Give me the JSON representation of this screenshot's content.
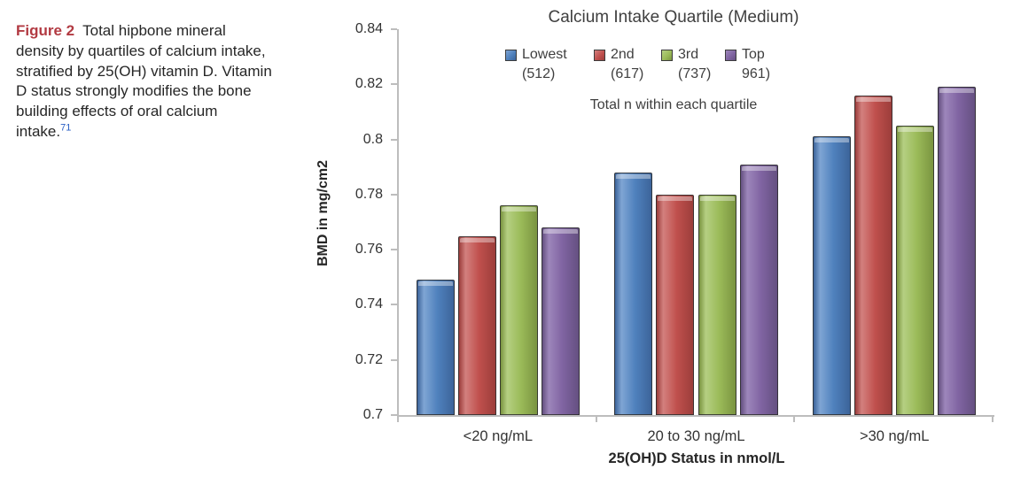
{
  "figure_caption": {
    "label": "Figure 2",
    "text": "Total hipbone mineral density by quartiles of calcium intake, stratified by 25(OH) vitamin D. Vitamin D status strongly modifies the bone building effects of oral calcium intake.",
    "reference_superscript": "71",
    "label_color": "#b23a42",
    "reference_color": "#2a5fc4"
  },
  "chart_data": {
    "type": "bar",
    "title": "Calcium Intake Quartile (Medium)",
    "legend_note": "Total n within each quartile",
    "xlabel": "25(OH)D Status in nmol/L",
    "ylabel": "BMD in mg/cm2",
    "ylim": [
      0.7,
      0.84
    ],
    "ytick_labels": [
      "0.84",
      "0.82",
      "0.8",
      "0.78",
      "0.76",
      "0.74",
      "0.72",
      "0.7"
    ],
    "grid": false,
    "legend_position": "top",
    "categories": [
      "<20 ng/mL",
      "20 to 30 ng/mL",
      ">30 ng/mL"
    ],
    "series": [
      {
        "name": "Lowest",
        "n_label": "(512)",
        "values": [
          0.749,
          0.788,
          0.801
        ],
        "color": "#4f81bd",
        "color_light": "#7fa5d4",
        "color_dark": "#3c649a"
      },
      {
        "name": "2nd",
        "n_label": "(617)",
        "values": [
          0.765,
          0.78,
          0.816
        ],
        "color": "#c0504d",
        "color_light": "#d3807e",
        "color_dark": "#9c3d3b"
      },
      {
        "name": "3rd",
        "n_label": "(737)",
        "values": [
          0.776,
          0.78,
          0.805
        ],
        "color": "#9bbb59",
        "color_light": "#b5cf82",
        "color_dark": "#7a9440"
      },
      {
        "name": "Top",
        "n_label": "961)",
        "values": [
          0.768,
          0.791,
          0.819
        ],
        "color": "#8064a2",
        "color_light": "#9d86bb",
        "color_dark": "#655081"
      }
    ],
    "axis_color": "#bdbdbd"
  }
}
